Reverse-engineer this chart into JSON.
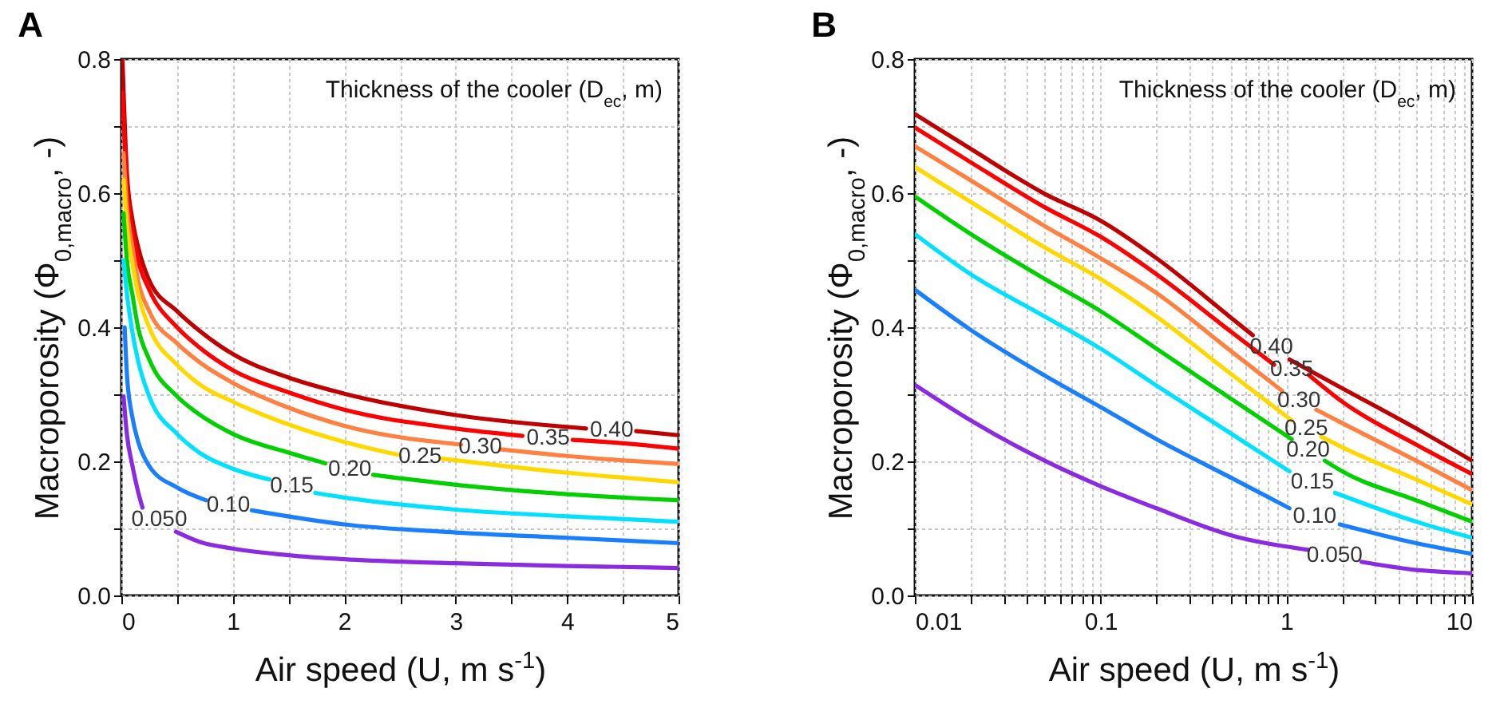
{
  "chart_data": [
    {
      "type": "line",
      "title": "A",
      "xlabel": "Air speed (U, m s$^{-1}$)",
      "ylabel": "Macroporosity (Φ$_{0,macro}$, -)",
      "annotations": [
        "Thickness of the cooler (D$_{ec}$, m)"
      ],
      "xlim": [
        0,
        5
      ],
      "ylim": [
        0,
        0.8
      ],
      "xticks": [
        0,
        {
          "value": 0.5,
          "label": null
        },
        1,
        {
          "value": 1.5,
          "label": null
        },
        2,
        {
          "value": 2.5,
          "label": null
        },
        3,
        {
          "value": 3.5,
          "label": null
        },
        4,
        {
          "value": 4.5,
          "label": null
        },
        5
      ],
      "yticks": [
        {
          "value": 0,
          "label": "0.0"
        },
        {
          "value": 0.1,
          "label": null
        },
        {
          "value": 0.2,
          "label": "0.2"
        },
        {
          "value": 0.3,
          "label": null
        },
        {
          "value": 0.4,
          "label": "0.4"
        },
        {
          "value": 0.5,
          "label": null
        },
        {
          "value": 0.6,
          "label": "0.6"
        },
        {
          "value": 0.7,
          "label": null
        },
        {
          "value": 0.8,
          "label": "0.8"
        }
      ],
      "grid": true,
      "series": [
        {
          "name": "0.40",
          "color": "#c00000",
          "x": [
            0.01,
            0.05,
            0.1,
            0.15,
            0.25,
            0.5,
            0.7,
            1,
            1.5,
            2,
            3,
            4.17,
            4.4,
            4.62,
            5
          ],
          "values": [
            0.8,
            0.63,
            0.56,
            0.52,
            0.47,
            0.424,
            0.395,
            0.36,
            0.325,
            0.301,
            0.269,
            0.249,
            null,
            0.245,
            0.239
          ]
        },
        {
          "name": "0.35",
          "color": "#ff0000",
          "x": [
            0.01,
            0.05,
            0.1,
            0.15,
            0.25,
            0.5,
            0.7,
            1,
            1.5,
            2,
            3,
            3.6,
            3.83,
            4.05,
            4.5,
            5
          ],
          "values": [
            0.75,
            0.61,
            0.543,
            0.5,
            0.456,
            0.4,
            0.37,
            0.336,
            0.303,
            0.277,
            0.249,
            0.238,
            null,
            0.232,
            0.227,
            0.219
          ]
        },
        {
          "name": "0.30",
          "color": "#ff8040",
          "x": [
            0.02,
            0.05,
            0.1,
            0.15,
            0.25,
            0.5,
            0.7,
            1,
            1.5,
            2,
            3.05,
            3.22,
            3.4,
            4,
            5
          ],
          "values": [
            0.66,
            0.58,
            0.519,
            0.47,
            0.424,
            0.376,
            0.348,
            0.317,
            0.28,
            0.253,
            0.225,
            null,
            0.218,
            0.208,
            0.196
          ]
        },
        {
          "name": "0.25",
          "color": "#ffd800",
          "x": [
            0.02,
            0.05,
            0.1,
            0.15,
            0.25,
            0.5,
            0.7,
            1,
            1.5,
            2,
            2.48,
            2.68,
            2.88,
            4,
            5
          ],
          "values": [
            0.62,
            0.55,
            0.495,
            0.45,
            0.4,
            0.344,
            0.315,
            0.289,
            0.255,
            0.229,
            0.21,
            null,
            0.204,
            0.183,
            0.169
          ]
        },
        {
          "name": "0.20",
          "color": "#00d000",
          "x": [
            0.02,
            0.05,
            0.1,
            0.15,
            0.25,
            0.5,
            0.7,
            1,
            1.5,
            1.83,
            2.05,
            2.26,
            3,
            4,
            5
          ],
          "values": [
            0.57,
            0.5,
            0.448,
            0.4,
            0.352,
            0.297,
            0.27,
            0.241,
            0.213,
            0.197,
            null,
            0.18,
            0.165,
            0.151,
            0.142
          ]
        },
        {
          "name": "0.15",
          "color": "#00e0ff",
          "x": [
            0.02,
            0.05,
            0.1,
            0.15,
            0.25,
            0.5,
            0.7,
            1,
            1.33,
            1.53,
            1.74,
            2,
            3,
            4,
            5
          ],
          "values": [
            0.5,
            0.45,
            0.392,
            0.35,
            0.297,
            0.241,
            0.213,
            0.189,
            0.173,
            null,
            0.153,
            0.146,
            0.128,
            0.118,
            0.11
          ]
        },
        {
          "name": "0.10",
          "color": "#1a7fff",
          "x": [
            0.03,
            0.05,
            0.1,
            0.15,
            0.25,
            0.5,
            0.76,
            0.96,
            1.17,
            2,
            3,
            4,
            5
          ],
          "values": [
            0.4,
            0.33,
            0.265,
            0.23,
            0.193,
            0.161,
            0.142,
            null,
            0.127,
            0.106,
            0.094,
            0.086,
            0.078
          ]
        },
        {
          "name": "0.050",
          "color": "#8a2be2",
          "x": [
            0.02,
            0.05,
            0.1,
            0.15,
            0.19,
            0.34,
            0.49,
            0.7,
            1,
            1.5,
            2,
            3,
            4,
            5
          ],
          "values": [
            0.297,
            0.24,
            0.193,
            0.155,
            0.131,
            null,
            0.095,
            0.08,
            0.07,
            0.06,
            0.054,
            0.048,
            0.044,
            0.041
          ]
        }
      ]
    },
    {
      "type": "line",
      "title": "B",
      "xlabel": "Air speed (U, m s$^{-1}$)",
      "ylabel": "Macroporosity (Φ$_{0,macro}$, -)",
      "annotations": [
        "Thickness of the cooler (D$_{ec}$, m)"
      ],
      "log": "x",
      "xlim": [
        0.01,
        10
      ],
      "ylim": [
        0,
        0.8
      ],
      "xticks": [
        0.01,
        {
          "value": 0.02,
          "label": null
        },
        {
          "value": 0.03,
          "label": null
        },
        {
          "value": 0.04,
          "label": null
        },
        {
          "value": 0.05,
          "label": null
        },
        {
          "value": 0.06,
          "label": null
        },
        {
          "value": 0.07,
          "label": null
        },
        {
          "value": 0.08,
          "label": null
        },
        {
          "value": 0.09,
          "label": null
        },
        0.1,
        {
          "value": 0.2,
          "label": null
        },
        {
          "value": 0.3,
          "label": null
        },
        {
          "value": 0.4,
          "label": null
        },
        {
          "value": 0.5,
          "label": null
        },
        {
          "value": 0.6,
          "label": null
        },
        {
          "value": 0.7,
          "label": null
        },
        {
          "value": 0.8,
          "label": null
        },
        {
          "value": 0.9,
          "label": null
        },
        1,
        {
          "value": 2,
          "label": null
        },
        {
          "value": 3,
          "label": null
        },
        {
          "value": 4,
          "label": null
        },
        {
          "value": 5,
          "label": null
        },
        {
          "value": 6,
          "label": null
        },
        {
          "value": 7,
          "label": null
        },
        {
          "value": 8,
          "label": null
        },
        {
          "value": 9,
          "label": null
        },
        10
      ],
      "yticks": [
        {
          "value": 0,
          "label": "0.0"
        },
        {
          "value": 0.1,
          "label": null
        },
        {
          "value": 0.2,
          "label": "0.2"
        },
        {
          "value": 0.3,
          "label": null
        },
        {
          "value": 0.4,
          "label": "0.4"
        },
        {
          "value": 0.5,
          "label": null
        },
        {
          "value": 0.6,
          "label": "0.6"
        },
        {
          "value": 0.7,
          "label": null
        },
        {
          "value": 0.8,
          "label": "0.8"
        }
      ],
      "grid": true,
      "series": [
        {
          "name": "0.40",
          "color": "#c00000",
          "x": [
            0.01,
            0.02,
            0.05,
            0.1,
            0.2,
            0.5,
            0.66,
            0.83,
            1.04,
            2,
            5,
            10
          ],
          "values": [
            0.718,
            0.666,
            0.599,
            0.559,
            0.503,
            0.415,
            0.388,
            null,
            0.352,
            0.309,
            0.249,
            0.201
          ]
        },
        {
          "name": "0.35",
          "color": "#ff0000",
          "x": [
            0.01,
            0.02,
            0.05,
            0.1,
            0.2,
            0.5,
            0.86,
            1.07,
            1.32,
            2,
            5,
            10
          ],
          "values": [
            0.698,
            0.646,
            0.579,
            0.535,
            0.479,
            0.394,
            0.344,
            null,
            0.329,
            0.289,
            0.225,
            0.181
          ]
        },
        {
          "name": "0.30",
          "color": "#ff8040",
          "x": [
            0.01,
            0.02,
            0.05,
            0.1,
            0.2,
            0.5,
            0.95,
            1.17,
            1.45,
            2,
            5,
            10
          ],
          "values": [
            0.67,
            0.619,
            0.551,
            0.503,
            0.451,
            0.365,
            0.305,
            null,
            0.277,
            0.257,
            0.201,
            0.157
          ]
        },
        {
          "name": "0.25",
          "color": "#ffd800",
          "x": [
            0.01,
            0.02,
            0.05,
            0.1,
            0.2,
            0.5,
            1.07,
            1.28,
            1.54,
            2,
            5,
            10
          ],
          "values": [
            0.639,
            0.587,
            0.519,
            0.472,
            0.416,
            0.331,
            0.261,
            null,
            0.237,
            0.221,
            0.173,
            0.136
          ]
        },
        {
          "name": "0.20",
          "color": "#00d000",
          "x": [
            0.01,
            0.02,
            0.05,
            0.1,
            0.2,
            0.5,
            1.07,
            1.31,
            1.61,
            2,
            5,
            10
          ],
          "values": [
            0.595,
            0.539,
            0.472,
            0.424,
            0.368,
            0.294,
            0.233,
            null,
            0.201,
            0.185,
            0.142,
            0.11
          ]
        },
        {
          "name": "0.15",
          "color": "#00e0ff",
          "x": [
            0.01,
            0.02,
            0.05,
            0.1,
            0.2,
            0.5,
            1.04,
            1.38,
            1.83,
            5,
            10
          ],
          "values": [
            0.539,
            0.479,
            0.416,
            0.368,
            0.313,
            0.242,
            0.185,
            null,
            0.153,
            0.11,
            0.086
          ]
        },
        {
          "name": "0.10",
          "color": "#1a7fff",
          "x": [
            0.01,
            0.02,
            0.05,
            0.1,
            0.2,
            0.5,
            1.04,
            1.42,
            1.94,
            5,
            10
          ],
          "values": [
            0.456,
            0.396,
            0.328,
            0.281,
            0.233,
            0.176,
            0.13,
            null,
            0.106,
            0.078,
            0.062
          ]
        },
        {
          "name": "0.050",
          "color": "#8a2be2",
          "x": [
            0.01,
            0.02,
            0.05,
            0.1,
            0.2,
            0.5,
            1.31,
            1.82,
            2.54,
            5,
            10
          ],
          "values": [
            0.314,
            0.261,
            0.201,
            0.163,
            0.13,
            0.09,
            0.068,
            null,
            0.05,
            0.038,
            0.033
          ]
        }
      ]
    }
  ]
}
